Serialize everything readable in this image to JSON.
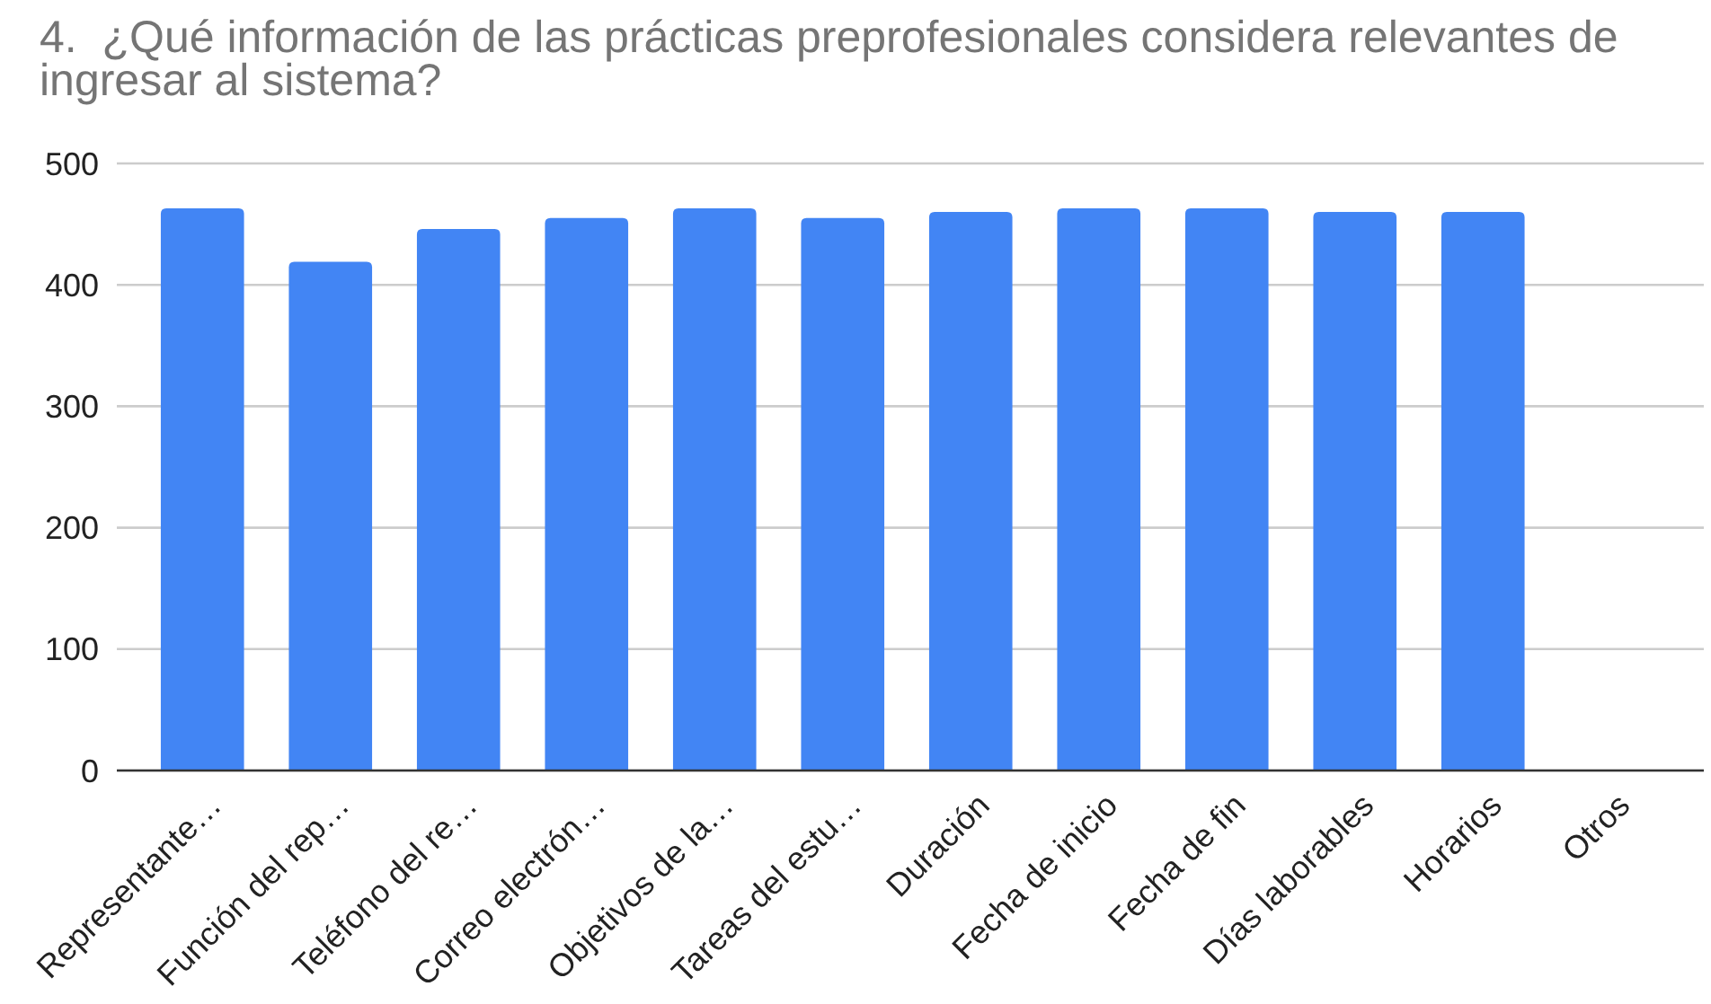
{
  "chart_data": {
    "type": "bar",
    "title": "4.  ¿Qué información de las prácticas preprofesionales considera relevantes de ingresar al sistema?",
    "categories": [
      "Representante…",
      "Función del rep…",
      "Teléfono del re…",
      "Correo electrón…",
      "Objetivos de la…",
      "Tareas del estu…",
      "Duración",
      "Fecha de inicio",
      "Fecha de fin",
      "Días laborables",
      "Horarios",
      "Otros"
    ],
    "values": [
      463,
      419,
      446,
      455,
      463,
      455,
      460,
      463,
      463,
      460,
      460,
      0
    ],
    "color": "#4285f4",
    "ylim": [
      0,
      500
    ],
    "yticks": [
      0,
      100,
      200,
      300,
      400,
      500
    ],
    "grid": "y"
  }
}
